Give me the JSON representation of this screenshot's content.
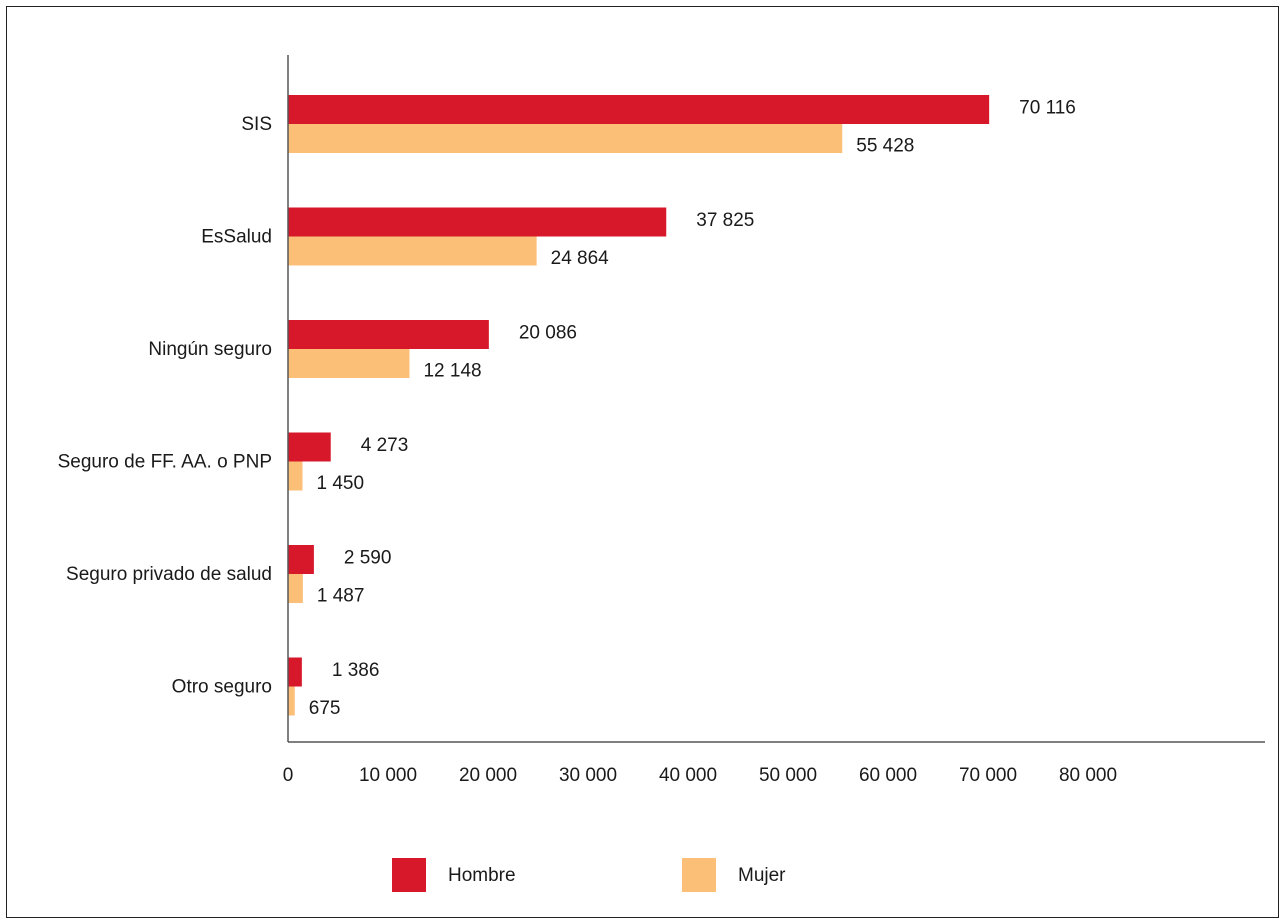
{
  "chart_data": {
    "type": "bar",
    "orientation": "horizontal",
    "categories": [
      "SIS",
      "EsSalud",
      "Ningún seguro",
      "Seguro de FF. AA. o PNP",
      "Seguro privado de salud",
      "Otro seguro"
    ],
    "series": [
      {
        "name": "Hombre",
        "color": "#d7182a",
        "values": [
          70116,
          37825,
          20086,
          4273,
          2590,
          1386
        ],
        "labels": [
          "70 116",
          "37 825",
          "20 086",
          "4 273",
          "2 590",
          "1 386"
        ]
      },
      {
        "name": "Mujer",
        "color": "#fbbf78",
        "values": [
          55428,
          24864,
          12148,
          1450,
          1487,
          675
        ],
        "labels": [
          "55 428",
          "24 864",
          "12 148",
          "1 450",
          "1 487",
          "675"
        ]
      }
    ],
    "xlim": [
      0,
      80000
    ],
    "xticks": [
      0,
      10000,
      20000,
      30000,
      40000,
      50000,
      60000,
      70000,
      80000
    ],
    "xtick_labels": [
      "0",
      "10 000",
      "20 000",
      "30 000",
      "40 000",
      "50 000",
      "60 000",
      "70 000",
      "80 000"
    ],
    "grid": false,
    "legend_position": "bottom-center",
    "title": "",
    "xlabel": "",
    "ylabel": ""
  }
}
